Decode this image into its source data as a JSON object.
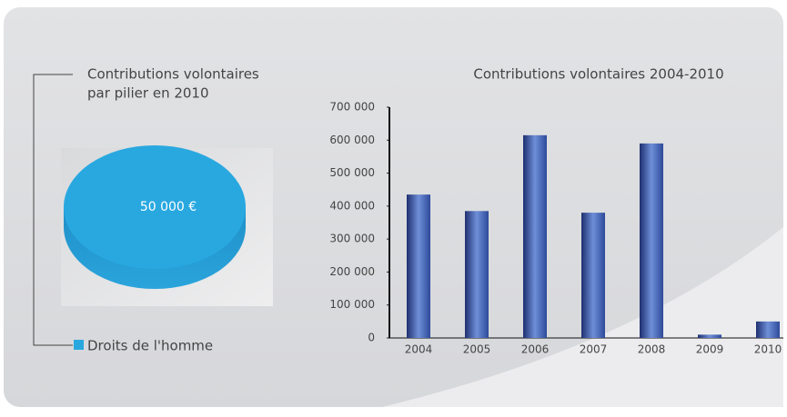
{
  "chart_data": [
    {
      "type": "pie",
      "title": [
        "Contributions volontaires",
        "par pilier en 2010"
      ],
      "categories": [
        "Droits de l'homme"
      ],
      "values": [
        50000
      ],
      "value_labels": [
        "50 000 €"
      ],
      "colors": [
        "#29a8e0"
      ]
    },
    {
      "type": "bar",
      "title": "Contributions volontaires 2004-2010",
      "categories": [
        "2004",
        "2005",
        "2006",
        "2007",
        "2008",
        "2009",
        "2010"
      ],
      "values": [
        435000,
        385000,
        615000,
        380000,
        590000,
        10000,
        50000
      ],
      "color": "#2d4a9a",
      "ylim": [
        0,
        700000
      ],
      "yticks": [
        0,
        {
          "value": 100000,
          "label": "100 000"
        },
        {
          "value": 200000,
          "label": "200 000"
        },
        {
          "value": 300000,
          "label": "300 000"
        },
        {
          "value": 400000,
          "label": "400 000"
        },
        {
          "value": 500000,
          "label": "500 000"
        },
        {
          "value": 600000,
          "label": "600 000"
        },
        {
          "value": 700000,
          "label": "700 000"
        }
      ]
    }
  ]
}
